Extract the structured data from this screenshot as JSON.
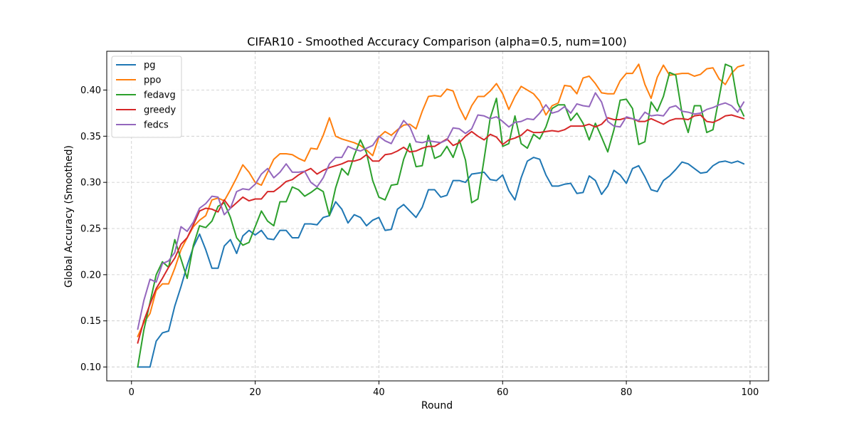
{
  "chart_data": {
    "type": "line",
    "title": "CIFAR10 - Smoothed Accuracy Comparison (alpha=0.5, num=100)",
    "xlabel": "Round",
    "ylabel": "Global Accuracy (Smoothed)",
    "xlim": [
      -4,
      103
    ],
    "ylim": [
      0.085,
      0.442
    ],
    "xticks": [
      0,
      20,
      40,
      60,
      80,
      100
    ],
    "xtick_labels": [
      "0",
      "20",
      "40",
      "60",
      "80",
      "100"
    ],
    "yticks": [
      0.1,
      0.15,
      0.2,
      0.25,
      0.3,
      0.35,
      0.4
    ],
    "ytick_labels": [
      "0.10",
      "0.15",
      "0.20",
      "0.25",
      "0.30",
      "0.35",
      "0.40"
    ],
    "grid": true,
    "legend_position": "top-left",
    "x": [
      1,
      2,
      3,
      4,
      5,
      6,
      7,
      8,
      9,
      10,
      11,
      12,
      13,
      14,
      15,
      16,
      17,
      18,
      19,
      20,
      21,
      22,
      23,
      24,
      25,
      26,
      27,
      28,
      29,
      30,
      31,
      32,
      33,
      34,
      35,
      36,
      37,
      38,
      39,
      40,
      41,
      42,
      43,
      44,
      45,
      46,
      47,
      48,
      49,
      50,
      51,
      52,
      53,
      54,
      55,
      56,
      57,
      58,
      59,
      60,
      61,
      62,
      63,
      64,
      65,
      66,
      67,
      68,
      69,
      70,
      71,
      72,
      73,
      74,
      75,
      76,
      77,
      78,
      79,
      80,
      81,
      82,
      83,
      84,
      85,
      86,
      87,
      88,
      89,
      90,
      91,
      92,
      93,
      94,
      95,
      96,
      97,
      98,
      99
    ],
    "series": [
      {
        "name": "pg",
        "color": "#1f77b4",
        "values": [
          0.1,
          0.1,
          0.1,
          0.128,
          0.137,
          0.139,
          0.166,
          0.187,
          0.21,
          0.23,
          0.244,
          0.227,
          0.207,
          0.207,
          0.231,
          0.238,
          0.223,
          0.242,
          0.248,
          0.243,
          0.248,
          0.239,
          0.238,
          0.248,
          0.248,
          0.24,
          0.24,
          0.255,
          0.255,
          0.254,
          0.262,
          0.264,
          0.279,
          0.271,
          0.256,
          0.265,
          0.262,
          0.253,
          0.259,
          0.262,
          0.248,
          0.249,
          0.271,
          0.276,
          0.269,
          0.262,
          0.273,
          0.292,
          0.292,
          0.284,
          0.286,
          0.302,
          0.302,
          0.3,
          0.309,
          0.31,
          0.311,
          0.303,
          0.302,
          0.308,
          0.291,
          0.281,
          0.305,
          0.323,
          0.327,
          0.325,
          0.308,
          0.296,
          0.296,
          0.298,
          0.299,
          0.288,
          0.289,
          0.307,
          0.302,
          0.287,
          0.296,
          0.313,
          0.308,
          0.299,
          0.315,
          0.318,
          0.306,
          0.292,
          0.29,
          0.302,
          0.307,
          0.314,
          0.322,
          0.32,
          0.315,
          0.31,
          0.311,
          0.318,
          0.322,
          0.323,
          0.321,
          0.323,
          0.32
        ]
      },
      {
        "name": "ppo",
        "color": "#ff7f0e",
        "values": [
          0.133,
          0.148,
          0.158,
          0.183,
          0.19,
          0.19,
          0.207,
          0.227,
          0.24,
          0.252,
          0.259,
          0.264,
          0.281,
          0.283,
          0.28,
          0.292,
          0.305,
          0.319,
          0.311,
          0.3,
          0.297,
          0.311,
          0.325,
          0.331,
          0.331,
          0.33,
          0.326,
          0.323,
          0.337,
          0.336,
          0.351,
          0.37,
          0.35,
          0.347,
          0.345,
          0.343,
          0.34,
          0.335,
          0.329,
          0.349,
          0.355,
          0.351,
          0.357,
          0.362,
          0.363,
          0.358,
          0.377,
          0.393,
          0.394,
          0.393,
          0.401,
          0.399,
          0.381,
          0.368,
          0.383,
          0.393,
          0.393,
          0.399,
          0.407,
          0.396,
          0.379,
          0.393,
          0.404,
          0.4,
          0.396,
          0.388,
          0.373,
          0.383,
          0.386,
          0.405,
          0.404,
          0.396,
          0.413,
          0.415,
          0.407,
          0.397,
          0.396,
          0.396,
          0.41,
          0.418,
          0.418,
          0.428,
          0.406,
          0.391,
          0.414,
          0.427,
          0.416,
          0.417,
          0.418,
          0.418,
          0.415,
          0.417,
          0.423,
          0.424,
          0.412,
          0.406,
          0.418,
          0.425,
          0.427
        ]
      },
      {
        "name": "fedavg",
        "color": "#2ca02c",
        "values": [
          0.1,
          0.14,
          0.17,
          0.2,
          0.214,
          0.208,
          0.238,
          0.217,
          0.196,
          0.232,
          0.253,
          0.251,
          0.258,
          0.274,
          0.278,
          0.262,
          0.24,
          0.232,
          0.235,
          0.252,
          0.269,
          0.258,
          0.253,
          0.279,
          0.279,
          0.295,
          0.292,
          0.285,
          0.289,
          0.294,
          0.29,
          0.264,
          0.294,
          0.315,
          0.308,
          0.329,
          0.346,
          0.332,
          0.302,
          0.284,
          0.281,
          0.297,
          0.298,
          0.325,
          0.342,
          0.317,
          0.318,
          0.351,
          0.326,
          0.329,
          0.339,
          0.327,
          0.346,
          0.324,
          0.278,
          0.282,
          0.325,
          0.37,
          0.391,
          0.339,
          0.342,
          0.372,
          0.342,
          0.337,
          0.352,
          0.347,
          0.36,
          0.38,
          0.384,
          0.384,
          0.367,
          0.375,
          0.364,
          0.346,
          0.364,
          0.349,
          0.333,
          0.357,
          0.389,
          0.39,
          0.38,
          0.341,
          0.344,
          0.387,
          0.377,
          0.393,
          0.419,
          0.416,
          0.375,
          0.354,
          0.383,
          0.383,
          0.354,
          0.357,
          0.392,
          0.428,
          0.425,
          0.386,
          0.372
        ]
      },
      {
        "name": "greedy",
        "color": "#d62728",
        "values": [
          0.126,
          0.15,
          0.168,
          0.185,
          0.196,
          0.208,
          0.218,
          0.233,
          0.24,
          0.254,
          0.269,
          0.272,
          0.271,
          0.268,
          0.281,
          0.272,
          0.278,
          0.284,
          0.28,
          0.282,
          0.282,
          0.29,
          0.29,
          0.295,
          0.301,
          0.303,
          0.308,
          0.312,
          0.315,
          0.309,
          0.313,
          0.316,
          0.318,
          0.32,
          0.323,
          0.323,
          0.325,
          0.33,
          0.323,
          0.323,
          0.33,
          0.331,
          0.334,
          0.338,
          0.333,
          0.334,
          0.337,
          0.339,
          0.339,
          0.343,
          0.347,
          0.34,
          0.343,
          0.35,
          0.355,
          0.35,
          0.346,
          0.352,
          0.349,
          0.341,
          0.346,
          0.348,
          0.351,
          0.357,
          0.354,
          0.354,
          0.355,
          0.356,
          0.355,
          0.357,
          0.361,
          0.361,
          0.361,
          0.363,
          0.36,
          0.363,
          0.37,
          0.368,
          0.368,
          0.37,
          0.369,
          0.366,
          0.366,
          0.369,
          0.366,
          0.363,
          0.367,
          0.369,
          0.369,
          0.368,
          0.372,
          0.373,
          0.366,
          0.365,
          0.368,
          0.372,
          0.373,
          0.371,
          0.369
        ]
      },
      {
        "name": "fedcs",
        "color": "#9467bd",
        "values": [
          0.141,
          0.172,
          0.195,
          0.192,
          0.212,
          0.215,
          0.224,
          0.252,
          0.247,
          0.257,
          0.272,
          0.277,
          0.285,
          0.284,
          0.265,
          0.272,
          0.29,
          0.293,
          0.292,
          0.298,
          0.309,
          0.315,
          0.305,
          0.311,
          0.32,
          0.311,
          0.311,
          0.312,
          0.3,
          0.295,
          0.305,
          0.32,
          0.327,
          0.327,
          0.339,
          0.336,
          0.334,
          0.337,
          0.34,
          0.35,
          0.345,
          0.342,
          0.355,
          0.367,
          0.36,
          0.344,
          0.343,
          0.345,
          0.344,
          0.343,
          0.346,
          0.359,
          0.358,
          0.353,
          0.358,
          0.373,
          0.372,
          0.369,
          0.371,
          0.366,
          0.36,
          0.365,
          0.366,
          0.369,
          0.368,
          0.375,
          0.384,
          0.375,
          0.377,
          0.382,
          0.375,
          0.385,
          0.383,
          0.382,
          0.397,
          0.387,
          0.366,
          0.361,
          0.36,
          0.371,
          0.369,
          0.367,
          0.376,
          0.372,
          0.373,
          0.372,
          0.381,
          0.383,
          0.377,
          0.376,
          0.374,
          0.375,
          0.379,
          0.381,
          0.384,
          0.386,
          0.383,
          0.376,
          0.387
        ]
      }
    ]
  }
}
